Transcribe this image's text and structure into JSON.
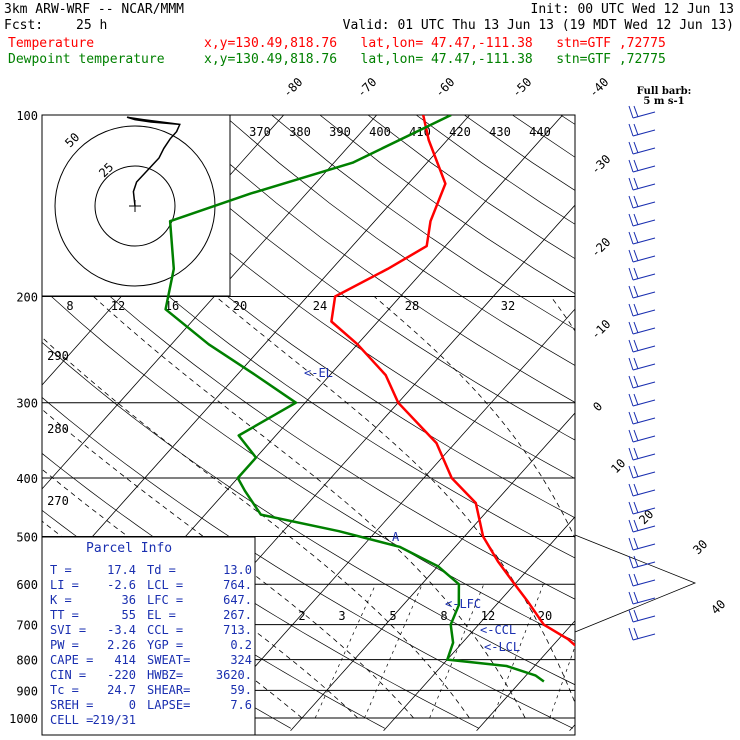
{
  "header": {
    "model": "3km ARW-WRF -- NCAR/MMM",
    "init": "Init: 00 UTC Wed 12 Jun 13",
    "fcst_label": "Fcst:",
    "fcst_value": "25 h",
    "valid": "Valid: 01 UTC Thu 13 Jun 13 (19 MDT Wed 12 Jun 13)",
    "temp_legend": "Temperature",
    "dew_legend": "Dewpoint temperature",
    "location": "x,y=130.49,818.76   lat,lon= 47.47,-111.38   stn=GTF ,72775",
    "temp_color": "#ff0000",
    "dew_color": "#008000"
  },
  "chart_data": {
    "type": "line",
    "title": "Skew-T log-P sounding",
    "pressure_ticks": [
      100,
      200,
      300,
      400,
      500,
      600,
      700,
      800,
      900,
      1000
    ],
    "isotherm_labels": [
      -80,
      -70,
      -60,
      -50,
      -40,
      -30,
      -20,
      -10,
      0,
      10,
      20,
      30,
      40
    ],
    "theta_labels_top": [
      370,
      380,
      390,
      400,
      410,
      420,
      430,
      440
    ],
    "theta_labels_left": [
      290,
      280,
      270
    ],
    "mixing_ratio_labels": [
      2,
      3,
      5,
      8,
      12,
      20
    ],
    "hodograph": {
      "units": "kts",
      "ring_labels": [
        "25",
        "50"
      ],
      "ring_speeds": [
        25,
        50
      ],
      "speed_scale_labels": [
        "8",
        "12",
        "16",
        "20",
        "24",
        "28",
        "32"
      ]
    },
    "barb_legend": {
      "line1": "Full barb:",
      "line2": "5 m s-1"
    },
    "levels": [
      {
        "label": "EL",
        "text": "<-EL"
      },
      {
        "label": "LFC",
        "text": "<-LFC"
      },
      {
        "label": "CCL",
        "text": "<-CCL"
      },
      {
        "label": "LCL",
        "text": "<-LCL"
      }
    ],
    "series": [
      {
        "name": "Temperature",
        "color": "#ff0000",
        "points": [
          [
            870,
            18.5
          ],
          [
            850,
            16.5
          ],
          [
            800,
            15.5
          ],
          [
            740,
            11
          ],
          [
            700,
            7
          ],
          [
            640,
            3
          ],
          [
            600,
            0
          ],
          [
            550,
            -4
          ],
          [
            500,
            -8
          ],
          [
            440,
            -12
          ],
          [
            400,
            -17
          ],
          [
            350,
            -22
          ],
          [
            300,
            -30
          ],
          [
            270,
            -34
          ],
          [
            240,
            -40
          ],
          [
            220,
            -45
          ],
          [
            200,
            -47
          ],
          [
            180,
            -44
          ],
          [
            165,
            -42
          ],
          [
            150,
            -44
          ],
          [
            130,
            -46
          ],
          [
            110,
            -52
          ],
          [
            100,
            -55
          ]
        ]
      },
      {
        "name": "Dewpoint temperature",
        "color": "#008000",
        "points": [
          [
            870,
            12.5
          ],
          [
            850,
            11
          ],
          [
            820,
            7
          ],
          [
            800,
            0
          ],
          [
            750,
            -1
          ],
          [
            700,
            -3
          ],
          [
            650,
            -4
          ],
          [
            600,
            -6
          ],
          [
            560,
            -10
          ],
          [
            520,
            -16
          ],
          [
            490,
            -24
          ],
          [
            460,
            -34
          ],
          [
            420,
            -38
          ],
          [
            400,
            -40
          ],
          [
            370,
            -40
          ],
          [
            340,
            -44
          ],
          [
            300,
            -41
          ],
          [
            270,
            -48
          ],
          [
            240,
            -56
          ],
          [
            210,
            -64
          ],
          [
            180,
            -67
          ],
          [
            150,
            -72
          ],
          [
            135,
            -66
          ],
          [
            120,
            -58
          ],
          [
            100,
            -52
          ]
        ]
      }
    ],
    "hodo_trace": [
      [
        0,
        0
      ],
      [
        -1,
        -12
      ],
      [
        1,
        -20
      ],
      [
        8,
        -30
      ],
      [
        15,
        -40
      ],
      [
        18,
        -48
      ],
      [
        22,
        -56
      ],
      [
        26,
        -62
      ],
      [
        28,
        -68
      ],
      [
        10,
        -70
      ],
      [
        0,
        -72
      ],
      [
        -5,
        -74
      ],
      [
        5,
        -72
      ],
      [
        28,
        -68
      ]
    ],
    "parcel_info": {
      "title": "Parcel Info",
      "rows": [
        [
          "T     =",
          "17.4",
          "Td    =",
          "13.0"
        ],
        [
          "LI    =",
          "-2.6",
          "LCL   =",
          "764."
        ],
        [
          "K     =",
          "36",
          "LFC   =",
          "647."
        ],
        [
          "TT    =",
          "55",
          "EL    =",
          "267."
        ],
        [
          "SVI   =",
          "-3.4",
          "CCL   =",
          "713."
        ],
        [
          "PW    =",
          "2.26",
          "YGP   =",
          "0.2"
        ],
        [
          "CAPE  =",
          "414",
          "SWEAT=",
          "324"
        ],
        [
          "CIN   =",
          "-220",
          "HWBZ=",
          "3620."
        ],
        [
          "Tc    =",
          "24.7",
          "SHEAR=",
          "59."
        ],
        [
          "SREH  =",
          "0",
          "LAPSE=",
          "7.6"
        ],
        [
          "CELL  =",
          "219/31",
          "",
          ""
        ]
      ]
    }
  }
}
